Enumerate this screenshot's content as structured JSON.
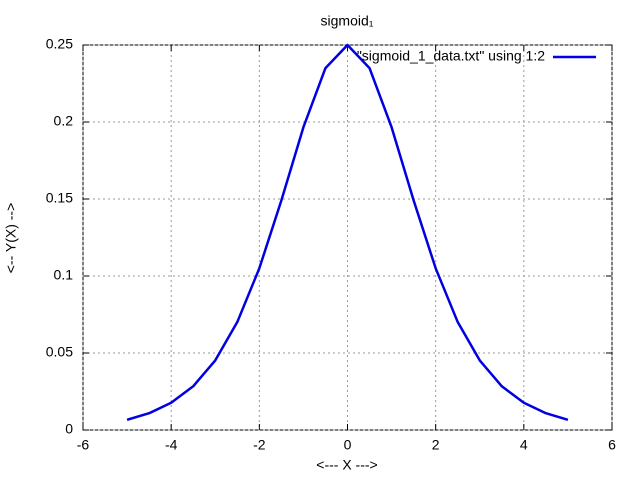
{
  "chart_data": {
    "type": "line",
    "title": "sigmoid₁",
    "x_label": "<--- X --->",
    "y_label": "<-- Y(X) -->",
    "x": [
      -5,
      -4.5,
      -4,
      -3.5,
      -3,
      -2.5,
      -2,
      -1.5,
      -1,
      -0.5,
      0,
      0.5,
      1,
      1.5,
      2,
      2.5,
      3,
      3.5,
      4,
      4.5,
      5
    ],
    "series": [
      {
        "name": "\"sigmoid_1_data.txt\" using 1:2",
        "color": "#0000e0",
        "values": [
          0.0066,
          0.0109,
          0.0177,
          0.0284,
          0.0452,
          0.0701,
          0.105,
          0.1491,
          0.1966,
          0.235,
          0.25,
          0.235,
          0.1966,
          0.1491,
          0.105,
          0.0701,
          0.0452,
          0.0284,
          0.0177,
          0.0109,
          0.0066
        ]
      }
    ],
    "xlim": [
      -6,
      6
    ],
    "xticks": [
      -6,
      -4,
      -2,
      0,
      2,
      4,
      6
    ],
    "ylim": [
      0,
      0.25
    ],
    "yticks": [
      0,
      0.05,
      0.1,
      0.15,
      0.2,
      0.25
    ],
    "grid": true,
    "legend": "top-right"
  }
}
